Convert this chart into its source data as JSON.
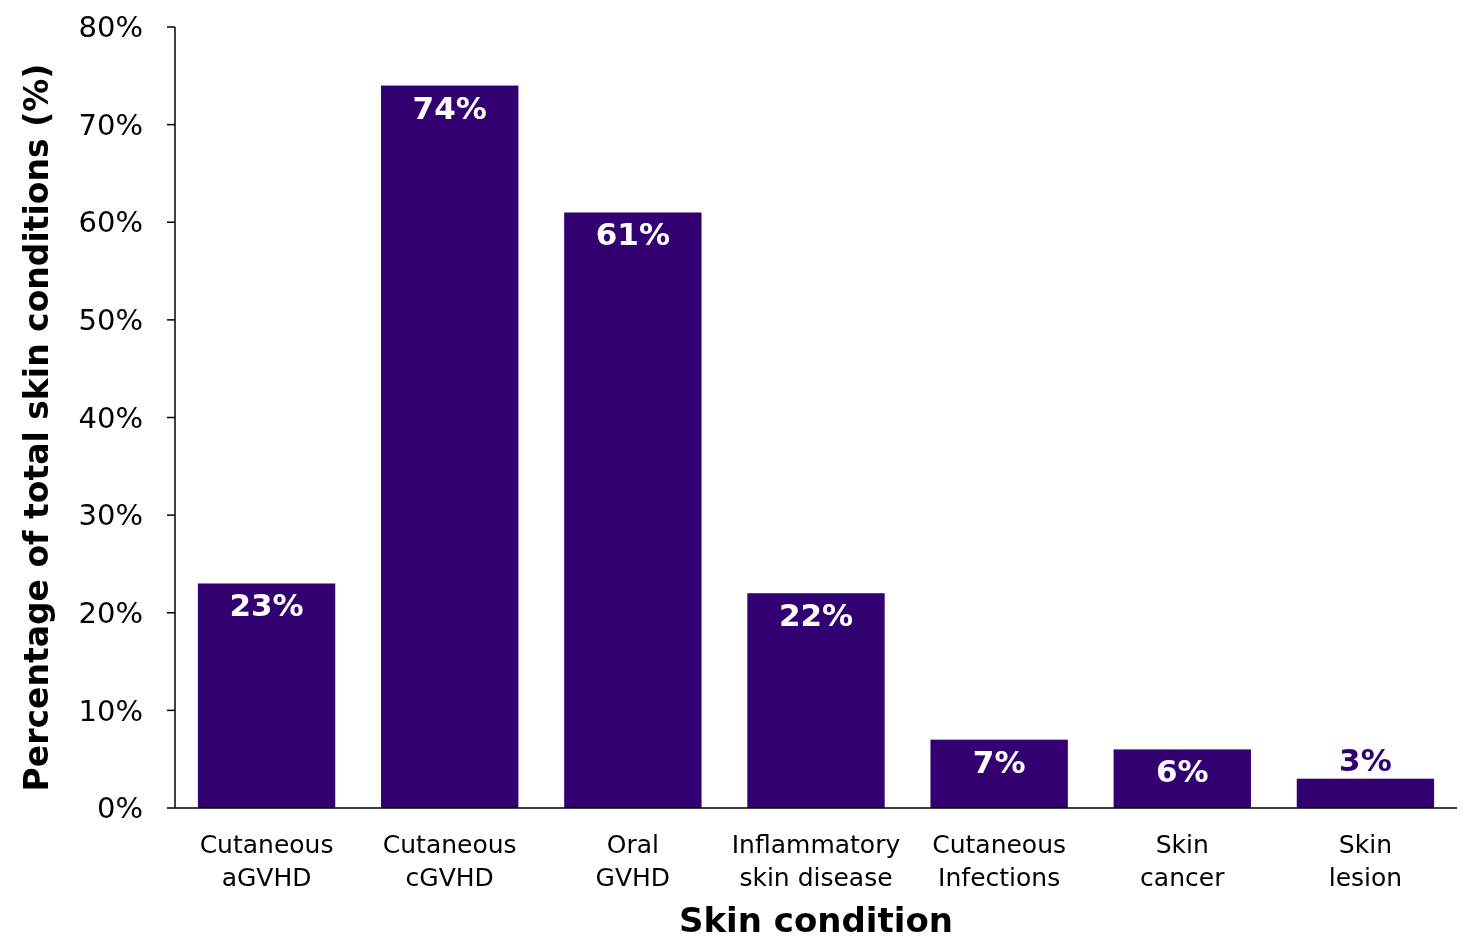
{
  "chart_data": {
    "type": "bar",
    "xlabel": "Skin condition",
    "ylabel": "Percentage of total skin conditions (%)",
    "categories": [
      "Cutaneous aGVHD",
      "Cutaneous cGVHD",
      "Oral GVHD",
      "Inflammatory skin disease",
      "Cutaneous Infections",
      "Skin cancer",
      "Skin lesion"
    ],
    "values": [
      23,
      74,
      61,
      22,
      7,
      6,
      3
    ],
    "value_labels": [
      "23%",
      "74%",
      "61%",
      "22%",
      "7%",
      "6%",
      "3%"
    ],
    "color": "#330072",
    "ylim": [
      0,
      80
    ],
    "yticks": [
      {
        "value": 0,
        "label": "0%"
      },
      {
        "value": 10,
        "label": "10%"
      },
      {
        "value": 20,
        "label": "20%"
      },
      {
        "value": 30,
        "label": "30%"
      },
      {
        "value": 40,
        "label": "40%"
      },
      {
        "value": 50,
        "label": "50%"
      },
      {
        "value": 60,
        "label": "60%"
      },
      {
        "value": 70,
        "label": "70%"
      },
      {
        "value": 80,
        "label": "80%"
      }
    ],
    "grid": false
  }
}
